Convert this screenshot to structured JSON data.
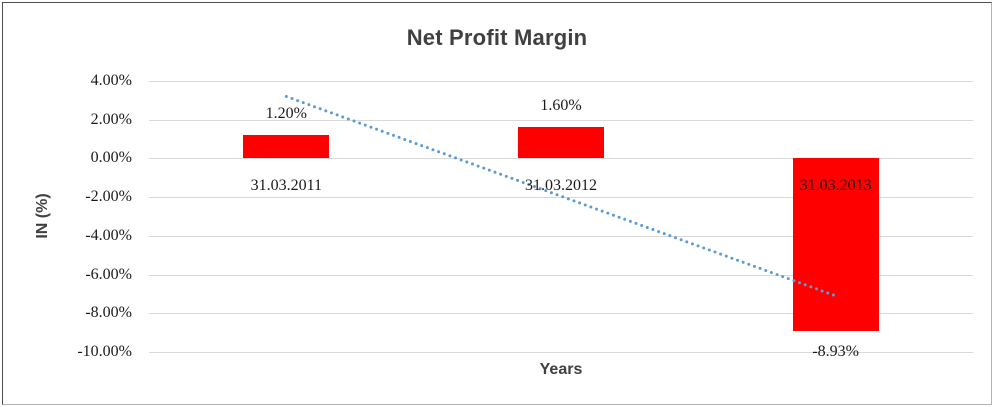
{
  "chart_data": {
    "type": "bar",
    "title": "Net Profit Margin",
    "ylabel": "IN (%)",
    "xlabel": "Years",
    "categories": [
      "31.03.2011",
      "31.03.2012",
      "31.03.2013"
    ],
    "values": [
      1.2,
      1.6,
      -8.93
    ],
    "value_labels": [
      "1.20%",
      "1.60%",
      "-8.93%"
    ],
    "ylim": [
      -10,
      4
    ],
    "y_ticks": [
      4,
      2,
      0,
      -2,
      -4,
      -6,
      -8,
      -10
    ],
    "y_tick_labels": [
      "4.00%",
      "2.00%",
      "0.00%",
      "-2.00%",
      "-4.00%",
      "-6.00%",
      "-8.00%",
      "-10.00%"
    ],
    "grid": true,
    "legend": "none",
    "series_color": "#FF0000",
    "trendline": {
      "type": "linear",
      "style": "dotted",
      "color": "#5B9BD5",
      "start_value": 3.2,
      "end_value": -7.1
    }
  },
  "colors": {
    "grid": "#D9D9D9",
    "axis_text": "#1a1a1a",
    "title_text": "#404040",
    "background": "#FFFFFF"
  }
}
